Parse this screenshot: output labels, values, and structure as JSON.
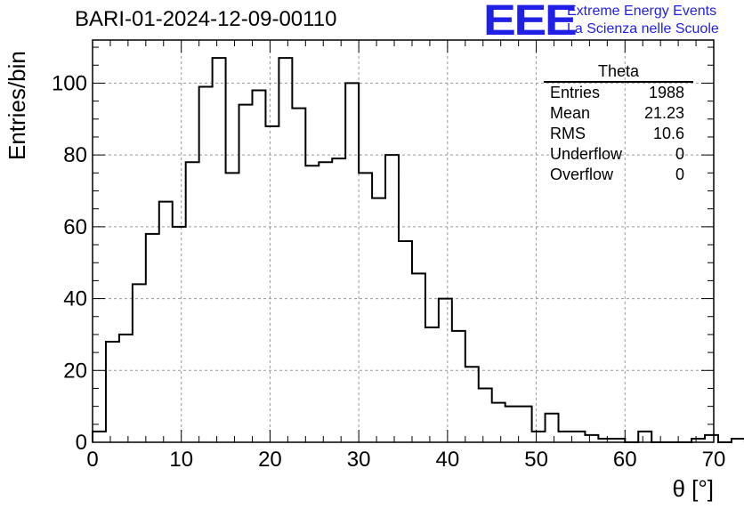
{
  "title": "BARI-01-2024-12-09-00110",
  "logo": {
    "mark": "EEE",
    "line1": "Extreme Energy Events",
    "line2": "La Scienza nelle Scuole",
    "color": "#1f1fe6"
  },
  "stats": {
    "name": "Theta",
    "rows": [
      {
        "label": "Entries",
        "value": "1988"
      },
      {
        "label": "Mean",
        "value": "21.23"
      },
      {
        "label": "RMS",
        "value": "10.6"
      },
      {
        "label": "Underflow",
        "value": "0"
      },
      {
        "label": "Overflow",
        "value": "0"
      }
    ]
  },
  "chart_data": {
    "type": "bar",
    "title": "BARI-01-2024-12-09-00110",
    "xlabel": "θ [°]",
    "ylabel": "Entries/bin",
    "xlim": [
      0,
      70
    ],
    "ylim": [
      0,
      112
    ],
    "bin_width": 1.5,
    "x_ticks": [
      0,
      10,
      20,
      30,
      40,
      50,
      60,
      70
    ],
    "y_ticks": [
      0,
      20,
      40,
      60,
      80,
      100
    ],
    "grid": true,
    "values": [
      3,
      28,
      30,
      44,
      58,
      67,
      60,
      78,
      99,
      107,
      75,
      94,
      98,
      88,
      107,
      93,
      77,
      78,
      79,
      100,
      75,
      68,
      80,
      56,
      47,
      32,
      40,
      31,
      21,
      15,
      11,
      10,
      10,
      3,
      8,
      3,
      3,
      2,
      1,
      1,
      0,
      3,
      0,
      0,
      0,
      1,
      2,
      0,
      1
    ]
  }
}
